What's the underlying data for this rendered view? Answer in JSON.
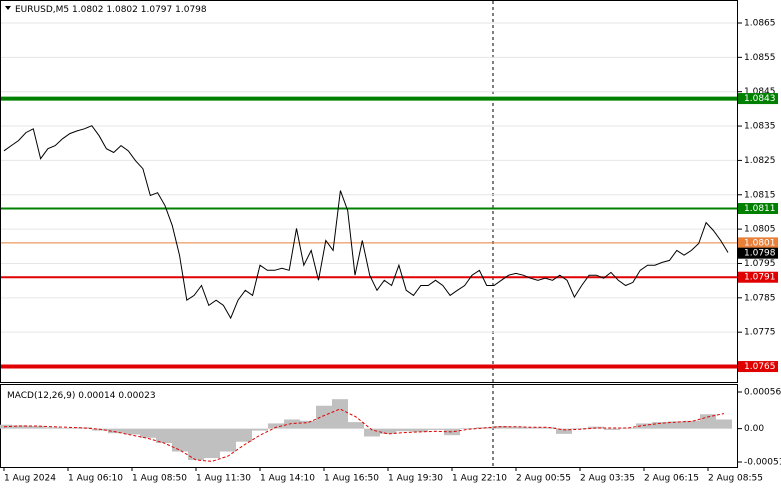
{
  "chart_data": [
    {
      "type": "line",
      "title": "EURUSD,M5",
      "ohlc": [
        1.0802,
        1.0802,
        1.0797,
        1.0798
      ],
      "x_tick_labels": [
        "1 Aug 2024",
        "1 Aug 06:10",
        "1 Aug 08:50",
        "1 Aug 11:30",
        "1 Aug 14:10",
        "1 Aug 16:50",
        "1 Aug 19:30",
        "1 Aug 22:10",
        "2 Aug 00:55",
        "2 Aug 03:35",
        "2 Aug 06:15",
        "2 Aug 08:55"
      ],
      "ylim": [
        1.07605,
        1.08714
      ],
      "yticks": [
        1.0865,
        1.0855,
        1.0845,
        1.0835,
        1.0825,
        1.0815,
        1.0805,
        1.0795,
        1.0785,
        1.0775
      ],
      "grid": true,
      "color": "#000000",
      "values": [
        1.08278,
        1.08293,
        1.08308,
        1.08331,
        1.08342,
        1.08255,
        1.08284,
        1.08293,
        1.08313,
        1.08328,
        1.08336,
        1.08342,
        1.08351,
        1.08322,
        1.08284,
        1.08273,
        1.08293,
        1.08278,
        1.08249,
        1.08226,
        1.08148,
        1.08156,
        1.08119,
        1.08061,
        1.07974,
        1.07843,
        1.07857,
        1.07886,
        1.07828,
        1.07843,
        1.07828,
        1.07791,
        1.07843,
        1.07872,
        1.07857,
        1.07945,
        1.0793,
        1.0793,
        1.07936,
        1.0793,
        1.08052,
        1.07945,
        1.07988,
        1.07901,
        1.08017,
        1.07988,
        1.08162,
        1.08104,
        1.07916,
        1.08017,
        1.07916,
        1.07872,
        1.07901,
        1.07886,
        1.07945,
        1.07872,
        1.07857,
        1.07886,
        1.07886,
        1.07901,
        1.07886,
        1.07857,
        1.07872,
        1.07886,
        1.07916,
        1.0793,
        1.07886,
        1.07886,
        1.07901,
        1.07916,
        1.07921,
        1.07916,
        1.07907,
        1.07901,
        1.07907,
        1.07901,
        1.07916,
        1.07901,
        1.07852,
        1.07886,
        1.07916,
        1.07916,
        1.07907,
        1.07924,
        1.07901,
        1.07886,
        1.07895,
        1.0793,
        1.07945,
        1.07945,
        1.07953,
        1.07959,
        1.07988,
        1.07974,
        1.07988,
        1.08008,
        1.08069,
        1.08046,
        1.08017,
        1.07982
      ],
      "levels": [
        {
          "value": 1.0843,
          "color": "#008000",
          "width": 4
        },
        {
          "value": 1.0811,
          "color": "#008000",
          "width": 2
        },
        {
          "value": 1.0801,
          "color": "#e8803a",
          "width": 1
        },
        {
          "value": 1.0798,
          "color": "#000000",
          "width": 0
        },
        {
          "value": 1.0791,
          "color": "#e00000",
          "width": 2
        },
        {
          "value": 1.0765,
          "color": "#e00000",
          "width": 4
        }
      ]
    },
    {
      "type": "macd",
      "title": "MACD(12,26,9)",
      "readout": [
        0.00014,
        0.00023
      ],
      "ylim": [
        -0.00051,
        0.00056
      ],
      "yticks": [
        0.00056,
        {
          "value": 0,
          "label": "0.00"
        },
        -0.00051
      ],
      "series": [
        {
          "name": "MACD",
          "color": "#c0c0c0",
          "values": [
            6e-05,
            5e-05,
            4e-05,
            2e-05,
            1e-05,
            2e-05,
            -3e-05,
            -7e-05,
            -9e-05,
            -0.00014,
            -0.00022,
            -0.00035,
            -0.00048,
            -0.00045,
            -0.00035,
            -0.0002,
            -3e-05,
            8e-05,
            0.00014,
            0.00012,
            0.00035,
            0.00045,
            0.0001,
            -0.00012,
            -8e-05,
            -4e-05,
            -5e-05,
            -2e-05,
            -0.0001,
            1e-05,
            2e-05,
            4e-05,
            3e-05,
            2e-05,
            2e-05,
            -8e-05,
            1e-05,
            3e-05,
            -2e-05,
            1e-05,
            8e-05,
            0.0001,
            0.00011,
            0.00012,
            0.00022,
            0.00014
          ]
        },
        {
          "name": "Signal",
          "color": "#e00000",
          "values": [
            3e-05,
            4e-05,
            4e-05,
            3e-05,
            2e-05,
            1e-05,
            -1e-05,
            -5e-05,
            -0.0001,
            -0.00015,
            -0.00022,
            -0.00033,
            -0.00048,
            -0.0005,
            -0.00042,
            -0.00025,
            -0.0001,
            2e-05,
            8e-05,
            9e-05,
            0.0002,
            0.0003,
            0.00018,
            -2e-05,
            -8e-05,
            -6e-05,
            -5e-05,
            -4e-05,
            -5e-05,
            -1e-05,
            1e-05,
            3e-05,
            3e-05,
            2e-05,
            2e-05,
            -2e-05,
            -1e-05,
            1e-05,
            1e-05,
            1e-05,
            5e-05,
            8e-05,
            0.0001,
            0.00011,
            0.00018,
            0.00023
          ]
        }
      ]
    }
  ]
}
